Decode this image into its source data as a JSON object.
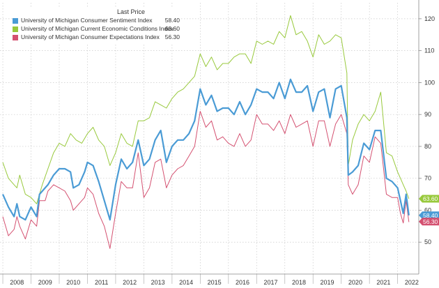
{
  "chart_data": {
    "type": "line",
    "title": "",
    "legend_header": "Last Price",
    "legend_position": "top-left",
    "ylim": [
      40,
      125
    ],
    "y_ticks": [
      50,
      60,
      70,
      80,
      90,
      100,
      110,
      120
    ],
    "x_ticks": [
      "2008",
      "2009",
      "2010",
      "2011",
      "2012",
      "2013",
      "2014",
      "2015",
      "2016",
      "2017",
      "2018",
      "2019",
      "2020",
      "2021",
      "2022"
    ],
    "y_axis_side": "right",
    "grid": "dotted",
    "series": [
      {
        "name": "University of Michigan Consumer Sentiment Index",
        "last": "58.40",
        "color": "#4a9bd5",
        "points": [
          [
            2008.0,
            65
          ],
          [
            2008.2,
            61
          ],
          [
            2008.4,
            58
          ],
          [
            2008.5,
            62
          ],
          [
            2008.6,
            58
          ],
          [
            2008.8,
            57
          ],
          [
            2009.0,
            61
          ],
          [
            2009.2,
            58
          ],
          [
            2009.3,
            65
          ],
          [
            2009.5,
            67
          ],
          [
            2009.6,
            68
          ],
          [
            2009.8,
            71
          ],
          [
            2010.0,
            73
          ],
          [
            2010.2,
            73
          ],
          [
            2010.4,
            72
          ],
          [
            2010.5,
            67
          ],
          [
            2010.7,
            68
          ],
          [
            2010.9,
            72
          ],
          [
            2011.0,
            75
          ],
          [
            2011.2,
            74
          ],
          [
            2011.4,
            69
          ],
          [
            2011.6,
            63
          ],
          [
            2011.8,
            57
          ],
          [
            2012.0,
            68
          ],
          [
            2012.2,
            76
          ],
          [
            2012.4,
            73
          ],
          [
            2012.6,
            75
          ],
          [
            2012.8,
            82
          ],
          [
            2013.0,
            74
          ],
          [
            2013.2,
            76
          ],
          [
            2013.4,
            82
          ],
          [
            2013.6,
            85
          ],
          [
            2013.8,
            75
          ],
          [
            2014.0,
            80
          ],
          [
            2014.2,
            82
          ],
          [
            2014.4,
            82
          ],
          [
            2014.6,
            84
          ],
          [
            2014.8,
            88
          ],
          [
            2015.0,
            98
          ],
          [
            2015.2,
            93
          ],
          [
            2015.4,
            96
          ],
          [
            2015.6,
            91
          ],
          [
            2015.8,
            92
          ],
          [
            2016.0,
            92
          ],
          [
            2016.2,
            90
          ],
          [
            2016.4,
            94
          ],
          [
            2016.6,
            90
          ],
          [
            2016.8,
            93
          ],
          [
            2017.0,
            98
          ],
          [
            2017.2,
            97
          ],
          [
            2017.4,
            97
          ],
          [
            2017.6,
            95
          ],
          [
            2017.8,
            100
          ],
          [
            2018.0,
            95
          ],
          [
            2018.2,
            101
          ],
          [
            2018.4,
            97
          ],
          [
            2018.6,
            97
          ],
          [
            2018.8,
            99
          ],
          [
            2019.0,
            91
          ],
          [
            2019.2,
            97
          ],
          [
            2019.4,
            98
          ],
          [
            2019.6,
            89
          ],
          [
            2019.8,
            98
          ],
          [
            2020.0,
            99
          ],
          [
            2020.2,
            89
          ],
          [
            2020.25,
            71
          ],
          [
            2020.4,
            72
          ],
          [
            2020.6,
            74
          ],
          [
            2020.8,
            81
          ],
          [
            2021.0,
            79
          ],
          [
            2021.2,
            85
          ],
          [
            2021.4,
            85
          ],
          [
            2021.6,
            70
          ],
          [
            2021.8,
            69
          ],
          [
            2022.0,
            67
          ],
          [
            2022.1,
            63
          ],
          [
            2022.2,
            59
          ],
          [
            2022.3,
            65
          ],
          [
            2022.4,
            58.4
          ]
        ]
      },
      {
        "name": "University of Michigan Current Economic Conditions Index",
        "last": "63.60",
        "color": "#98c93c",
        "points": [
          [
            2008.0,
            75
          ],
          [
            2008.2,
            70
          ],
          [
            2008.4,
            68
          ],
          [
            2008.5,
            67
          ],
          [
            2008.6,
            71
          ],
          [
            2008.8,
            65
          ],
          [
            2009.0,
            64
          ],
          [
            2009.2,
            62
          ],
          [
            2009.4,
            68
          ],
          [
            2009.6,
            73
          ],
          [
            2009.8,
            78
          ],
          [
            2010.0,
            81
          ],
          [
            2010.2,
            80
          ],
          [
            2010.4,
            84
          ],
          [
            2010.6,
            82
          ],
          [
            2010.8,
            81
          ],
          [
            2011.0,
            84
          ],
          [
            2011.2,
            86
          ],
          [
            2011.4,
            82
          ],
          [
            2011.6,
            80
          ],
          [
            2011.8,
            74
          ],
          [
            2012.0,
            78
          ],
          [
            2012.2,
            84
          ],
          [
            2012.4,
            81
          ],
          [
            2012.6,
            80
          ],
          [
            2012.8,
            88
          ],
          [
            2013.0,
            88
          ],
          [
            2013.2,
            89
          ],
          [
            2013.4,
            94
          ],
          [
            2013.6,
            93
          ],
          [
            2013.8,
            92
          ],
          [
            2014.0,
            95
          ],
          [
            2014.2,
            97
          ],
          [
            2014.4,
            98
          ],
          [
            2014.6,
            100
          ],
          [
            2014.8,
            102
          ],
          [
            2015.0,
            109
          ],
          [
            2015.2,
            105
          ],
          [
            2015.4,
            108
          ],
          [
            2015.6,
            104
          ],
          [
            2015.8,
            106
          ],
          [
            2016.0,
            106
          ],
          [
            2016.2,
            108
          ],
          [
            2016.4,
            109
          ],
          [
            2016.6,
            109
          ],
          [
            2016.8,
            106
          ],
          [
            2017.0,
            113
          ],
          [
            2017.2,
            112
          ],
          [
            2017.4,
            113
          ],
          [
            2017.6,
            112
          ],
          [
            2017.8,
            116
          ],
          [
            2018.0,
            114
          ],
          [
            2018.2,
            121
          ],
          [
            2018.4,
            115
          ],
          [
            2018.6,
            116
          ],
          [
            2018.8,
            113
          ],
          [
            2019.0,
            108
          ],
          [
            2019.2,
            115
          ],
          [
            2019.4,
            112
          ],
          [
            2019.6,
            113
          ],
          [
            2019.8,
            115
          ],
          [
            2020.0,
            114
          ],
          [
            2020.2,
            103
          ],
          [
            2020.25,
            74
          ],
          [
            2020.4,
            82
          ],
          [
            2020.6,
            87
          ],
          [
            2020.8,
            90
          ],
          [
            2021.0,
            88
          ],
          [
            2021.2,
            91
          ],
          [
            2021.4,
            97
          ],
          [
            2021.6,
            78
          ],
          [
            2021.8,
            77
          ],
          [
            2022.0,
            72
          ],
          [
            2022.1,
            70
          ],
          [
            2022.2,
            68
          ],
          [
            2022.3,
            66
          ],
          [
            2022.4,
            63.6
          ]
        ]
      },
      {
        "name": "University of Michigan Consumer Expectations Index",
        "last": "56.30",
        "color": "#d45070",
        "points": [
          [
            2008.0,
            58
          ],
          [
            2008.2,
            52
          ],
          [
            2008.4,
            54
          ],
          [
            2008.5,
            58
          ],
          [
            2008.6,
            55
          ],
          [
            2008.8,
            51
          ],
          [
            2009.0,
            57
          ],
          [
            2009.2,
            55
          ],
          [
            2009.3,
            63
          ],
          [
            2009.5,
            63
          ],
          [
            2009.6,
            66
          ],
          [
            2009.8,
            68
          ],
          [
            2010.0,
            67
          ],
          [
            2010.2,
            66
          ],
          [
            2010.4,
            63
          ],
          [
            2010.5,
            60
          ],
          [
            2010.7,
            62
          ],
          [
            2010.9,
            64
          ],
          [
            2011.0,
            67
          ],
          [
            2011.2,
            65
          ],
          [
            2011.4,
            59
          ],
          [
            2011.6,
            55
          ],
          [
            2011.8,
            48
          ],
          [
            2012.0,
            59
          ],
          [
            2012.2,
            69
          ],
          [
            2012.4,
            67
          ],
          [
            2012.6,
            67
          ],
          [
            2012.8,
            78
          ],
          [
            2013.0,
            64
          ],
          [
            2013.2,
            67
          ],
          [
            2013.4,
            75
          ],
          [
            2013.6,
            76
          ],
          [
            2013.8,
            67
          ],
          [
            2014.0,
            71
          ],
          [
            2014.2,
            73
          ],
          [
            2014.4,
            74
          ],
          [
            2014.6,
            77
          ],
          [
            2014.8,
            80
          ],
          [
            2015.0,
            91
          ],
          [
            2015.2,
            86
          ],
          [
            2015.4,
            88
          ],
          [
            2015.6,
            82
          ],
          [
            2015.8,
            83
          ],
          [
            2016.0,
            81
          ],
          [
            2016.2,
            80
          ],
          [
            2016.4,
            84
          ],
          [
            2016.6,
            80
          ],
          [
            2016.8,
            82
          ],
          [
            2017.0,
            90
          ],
          [
            2017.2,
            87
          ],
          [
            2017.4,
            87
          ],
          [
            2017.6,
            85
          ],
          [
            2017.8,
            88
          ],
          [
            2018.0,
            84
          ],
          [
            2018.2,
            90
          ],
          [
            2018.4,
            86
          ],
          [
            2018.6,
            87
          ],
          [
            2018.8,
            88
          ],
          [
            2019.0,
            80
          ],
          [
            2019.2,
            88
          ],
          [
            2019.4,
            88
          ],
          [
            2019.6,
            80
          ],
          [
            2019.8,
            87
          ],
          [
            2020.0,
            90
          ],
          [
            2020.2,
            84
          ],
          [
            2020.25,
            68
          ],
          [
            2020.4,
            65
          ],
          [
            2020.6,
            68
          ],
          [
            2020.8,
            77
          ],
          [
            2021.0,
            75
          ],
          [
            2021.2,
            83
          ],
          [
            2021.4,
            81
          ],
          [
            2021.6,
            65
          ],
          [
            2021.8,
            64
          ],
          [
            2022.0,
            64
          ],
          [
            2022.1,
            59
          ],
          [
            2022.2,
            56
          ],
          [
            2022.3,
            63
          ],
          [
            2022.4,
            56.3
          ]
        ]
      }
    ]
  }
}
